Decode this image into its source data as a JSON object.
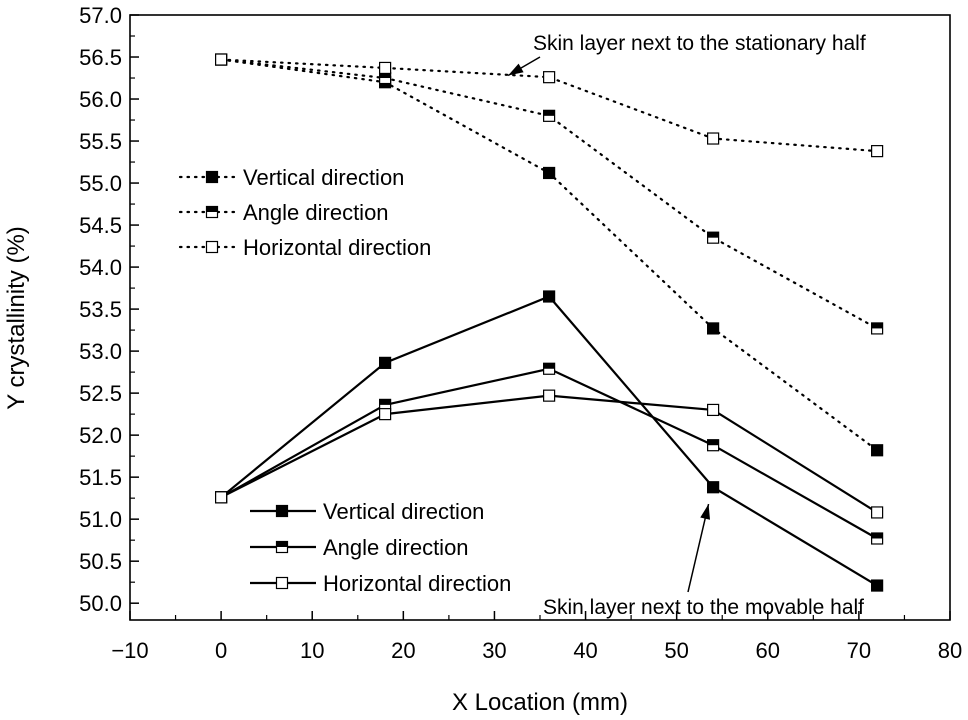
{
  "chart_data": {
    "type": "line",
    "title": "",
    "xlabel": "X Location (mm)",
    "ylabel": "Y crystallinity (%)",
    "xlim": [
      -10,
      80
    ],
    "ylim": [
      49.8,
      57.0
    ],
    "xticks": [
      -10,
      0,
      10,
      20,
      30,
      40,
      50,
      60,
      70,
      80
    ],
    "xtick_labels": [
      "−10",
      "0",
      "10",
      "20",
      "30",
      "40",
      "50",
      "60",
      "70",
      "80"
    ],
    "yticks": [
      50.0,
      50.5,
      51.0,
      51.5,
      52.0,
      52.5,
      53.0,
      53.5,
      54.0,
      54.5,
      55.0,
      55.5,
      56.0,
      56.5,
      57.0
    ],
    "ytick_labels": [
      "50.0",
      "50.5",
      "51.0",
      "51.5",
      "52.0",
      "52.5",
      "53.0",
      "53.5",
      "54.0",
      "54.5",
      "55.0",
      "55.5",
      "56.0",
      "56.5",
      "57.0"
    ],
    "grid": false,
    "series": [
      {
        "name": "Vertical direction",
        "group": "stationary",
        "line_style": "dotted",
        "marker": "filled-square",
        "x": [
          0,
          18,
          36,
          54,
          72
        ],
        "y": [
          56.47,
          56.2,
          55.12,
          53.27,
          51.82
        ]
      },
      {
        "name": "Angle direction",
        "group": "stationary",
        "line_style": "dotted",
        "marker": "half-filled-square",
        "x": [
          0,
          18,
          36,
          54,
          72
        ],
        "y": [
          56.47,
          56.25,
          55.8,
          54.35,
          53.27
        ]
      },
      {
        "name": "Horizontal direction",
        "group": "stationary",
        "line_style": "dotted",
        "marker": "open-square",
        "x": [
          0,
          18,
          36,
          54,
          72
        ],
        "y": [
          56.47,
          56.37,
          56.26,
          55.53,
          55.38
        ]
      },
      {
        "name": "Vertical direction",
        "group": "movable",
        "line_style": "solid",
        "marker": "filled-square",
        "x": [
          0,
          18,
          36,
          54,
          72
        ],
        "y": [
          51.26,
          52.86,
          53.65,
          51.38,
          50.21
        ]
      },
      {
        "name": "Angle direction",
        "group": "movable",
        "line_style": "solid",
        "marker": "half-filled-square",
        "x": [
          0,
          18,
          36,
          54,
          72
        ],
        "y": [
          51.26,
          52.36,
          52.79,
          51.88,
          50.77
        ]
      },
      {
        "name": "Horizontal direction",
        "group": "movable",
        "line_style": "solid",
        "marker": "open-square",
        "x": [
          0,
          18,
          36,
          54,
          72
        ],
        "y": [
          51.26,
          52.25,
          52.47,
          52.3,
          51.08
        ]
      }
    ],
    "legends": [
      {
        "placement": "upper-left",
        "entries": [
          "Vertical direction",
          "Angle direction",
          "Horizontal direction"
        ],
        "line_style": "dotted"
      },
      {
        "placement": "lower-left",
        "entries": [
          "Vertical direction",
          "Angle direction",
          "Horizontal direction"
        ],
        "line_style": "solid"
      }
    ],
    "annotations": [
      {
        "text": "Skin layer next to the stationary half",
        "arrow_to": {
          "x": 31.5,
          "y": 56.28
        }
      },
      {
        "text": "Skin layer next to the movable half",
        "arrow_to": {
          "x": 53.5,
          "y": 51.18
        }
      }
    ]
  }
}
